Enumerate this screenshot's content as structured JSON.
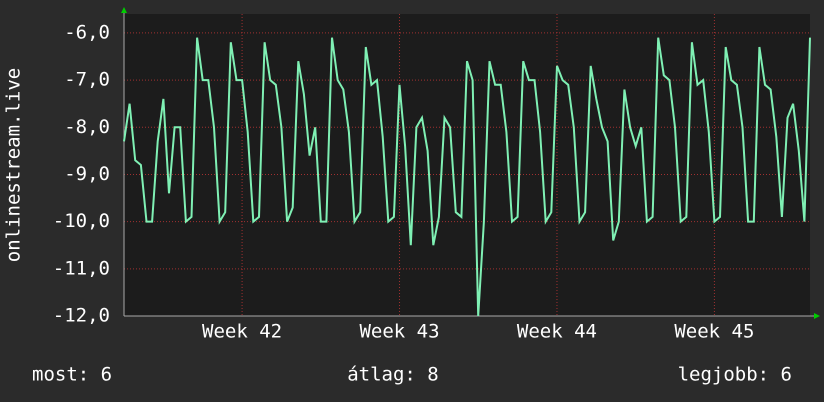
{
  "chart_data": {
    "type": "line",
    "y_label": "onlinestream.live",
    "categories": [
      null,
      null,
      null,
      null,
      null,
      null,
      null,
      null,
      null,
      null,
      null,
      null,
      null,
      null,
      null,
      null,
      null,
      null,
      null,
      null,
      null,
      "Week 42",
      null,
      null,
      null,
      null,
      null,
      null,
      null,
      null,
      null,
      null,
      null,
      null,
      null,
      null,
      null,
      null,
      null,
      null,
      null,
      null,
      null,
      null,
      null,
      null,
      null,
      null,
      null,
      "Week 43",
      null,
      null,
      null,
      null,
      null,
      null,
      null,
      null,
      null,
      null,
      null,
      null,
      null,
      null,
      null,
      null,
      null,
      null,
      null,
      null,
      null,
      null,
      null,
      null,
      null,
      null,
      null,
      "Week 44",
      null,
      null,
      null,
      null,
      null,
      null,
      null,
      null,
      null,
      null,
      null,
      null,
      null,
      null,
      null,
      null,
      null,
      null,
      null,
      null,
      null,
      null,
      null,
      null,
      null,
      null,
      null,
      "Week 45",
      null,
      null,
      null,
      null,
      null,
      null,
      null,
      null,
      null,
      null,
      null,
      null,
      null,
      null,
      null,
      null,
      null
    ],
    "series": [
      {
        "color": "#7ff0b4",
        "values": [
          -8.3,
          -7.5,
          -8.7,
          -8.8,
          -10,
          -10,
          -8.3,
          -7.4,
          -9.4,
          -8,
          -8,
          -10,
          -9.9,
          -6.1,
          -7,
          -7,
          -8,
          -10,
          -9.8,
          -6.2,
          -7,
          -7,
          -8.1,
          -10,
          -9.9,
          -6.2,
          -7,
          -7.1,
          -8,
          -10,
          -9.7,
          -6.6,
          -7.3,
          -8.6,
          -8,
          -10,
          -10,
          -6.1,
          -7,
          -7.2,
          -8.1,
          -10,
          -9.8,
          -6.3,
          -7.1,
          -7,
          -8.2,
          -10,
          -9.9,
          -7.1,
          -8.4,
          -10.5,
          -8,
          -7.8,
          -8.5,
          -10.5,
          -9.9,
          -7.8,
          -8,
          -9.8,
          -9.9,
          -6.6,
          -7,
          -12,
          -10,
          -6.6,
          -7.1,
          -7.1,
          -8.1,
          -10,
          -9.9,
          -6.6,
          -7,
          -7,
          -8.1,
          -10,
          -9.8,
          -6.7,
          -7,
          -7.1,
          -8,
          -10,
          -9.8,
          -6.7,
          -7.4,
          -8,
          -8.3,
          -10.4,
          -10,
          -7.2,
          -8,
          -8.4,
          -8,
          -10,
          -9.9,
          -6.1,
          -6.9,
          -7,
          -8,
          -10,
          -9.9,
          -6.2,
          -7.1,
          -7,
          -8.1,
          -10,
          -9.9,
          -6.3,
          -7,
          -7.1,
          -8,
          -10,
          -10,
          -6.3,
          -7.1,
          -7.2,
          -8.2,
          -9.9,
          -7.8,
          -7.5,
          -8.5,
          -10,
          -6.1
        ]
      }
    ],
    "ylim": [
      -12,
      -5.6
    ],
    "yticks": [
      {
        "value": -12,
        "label": "-12,0"
      },
      {
        "value": -11,
        "label": "-11,0"
      },
      {
        "value": -10,
        "label": "-10,0"
      },
      {
        "value": -9,
        "label": "-9,0"
      },
      {
        "value": -8,
        "label": "-8,0"
      },
      {
        "value": -7,
        "label": "-7,0"
      },
      {
        "value": -6,
        "label": "-6,0"
      }
    ],
    "grid": true,
    "summary": [
      "most: 6",
      "átlag: 8",
      "legjobb: 6"
    ]
  }
}
